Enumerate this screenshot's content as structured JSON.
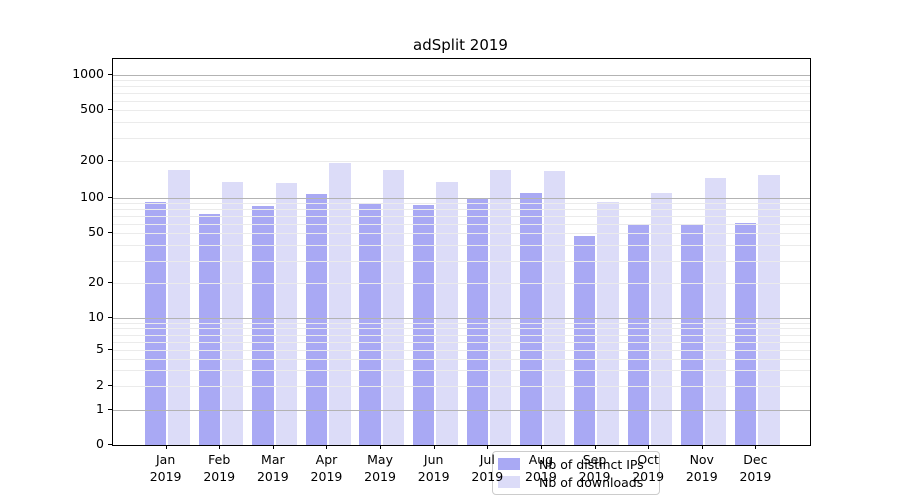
{
  "chart_data": {
    "type": "bar",
    "title": "adSplit 2019",
    "x_tick_months": [
      "Jan",
      "Feb",
      "Mar",
      "Apr",
      "May",
      "Jun",
      "Jul",
      "Aug",
      "Sep",
      "Oct",
      "Nov",
      "Dec"
    ],
    "x_tick_year": "2019",
    "series": [
      {
        "name": "Nb of distinct IPs",
        "color": "#a9a9f4",
        "values": [
          92,
          72,
          85,
          108,
          90,
          87,
          100,
          110,
          47,
          58,
          58,
          61
        ]
      },
      {
        "name": "Nb of downloads",
        "color": "#dcdcf8",
        "values": [
          170,
          135,
          132,
          192,
          170,
          134,
          169,
          165,
          92,
          109,
          145,
          155
        ]
      }
    ],
    "yticks": [
      {
        "value": 1000,
        "label": "1000"
      },
      {
        "value": 500,
        "label": "500"
      },
      {
        "value": 200,
        "label": "200"
      },
      {
        "value": 100,
        "label": "100"
      },
      {
        "value": 50,
        "label": "50"
      },
      {
        "value": 20,
        "label": "20"
      },
      {
        "value": 10,
        "label": "10"
      },
      {
        "value": 5,
        "label": "5"
      },
      {
        "value": 2,
        "label": "2"
      },
      {
        "value": 1,
        "label": "1"
      },
      {
        "value": 0,
        "label": "0"
      }
    ],
    "yscale": "symlog",
    "ylim": [
      0,
      1360
    ],
    "yscale_anchors": [
      [
        0,
        1.0
      ],
      [
        1,
        0.9101
      ],
      [
        2,
        0.8472
      ],
      [
        5,
        0.7548
      ],
      [
        10,
        0.6704
      ],
      [
        20,
        0.5798
      ],
      [
        50,
        0.4499
      ],
      [
        100,
        0.3598
      ],
      [
        200,
        0.2648
      ],
      [
        500,
        0.131
      ],
      [
        1000,
        0.0422
      ]
    ],
    "major_gridlines": [
      1,
      10,
      100,
      1000
    ],
    "minor_gridlines": [
      2,
      3,
      4,
      5,
      6,
      7,
      8,
      9,
      20,
      30,
      40,
      50,
      60,
      70,
      80,
      90,
      200,
      300,
      400,
      500,
      600,
      700,
      800,
      900
    ],
    "grid": true,
    "legend_position": "lower center"
  },
  "colors": {
    "grid_major": "#b3b3b3",
    "grid_minor": "#ebebeb",
    "axis": "#000000",
    "legend_border": "#cccccc",
    "background": "#ffffff"
  }
}
